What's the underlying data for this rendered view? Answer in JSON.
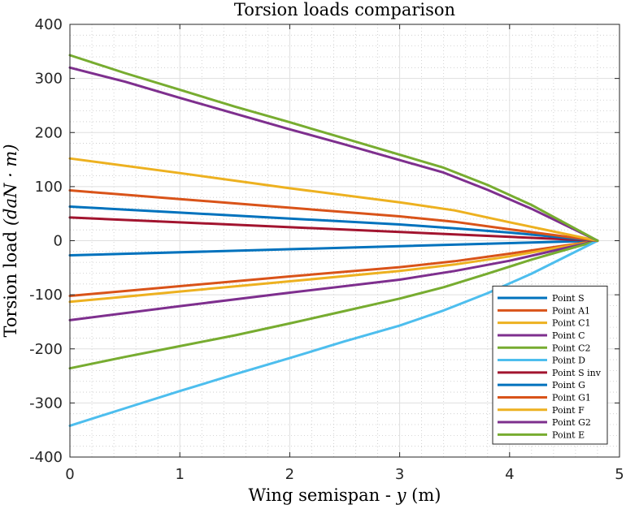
{
  "chart_data": {
    "type": "line",
    "title": "Torsion loads comparison",
    "xlabel_text": "Wing semispan - ",
    "xlabel_var": "y",
    "xlabel_unit": "(m)",
    "ylabel_text": "Torsion load ",
    "ylabel_unit": "(daN · m)",
    "xlim": [
      0,
      5
    ],
    "ylim": [
      -400,
      400
    ],
    "xticks": [
      0,
      1,
      2,
      3,
      4,
      5
    ],
    "yticks": [
      -400,
      -300,
      -200,
      -100,
      0,
      100,
      200,
      300,
      400
    ],
    "grid": true,
    "minor_grid": true,
    "legend_position": "bottom-right",
    "series": [
      {
        "name": "Point S",
        "color": "#0072BD",
        "x": [
          0,
          4.8
        ],
        "y": [
          -27,
          0
        ]
      },
      {
        "name": "Point A1",
        "color": "#D95319",
        "x": [
          0,
          1,
          2,
          3,
          3.5,
          4,
          4.8
        ],
        "y": [
          -102,
          -84,
          -66,
          -49,
          -38,
          -24,
          0
        ]
      },
      {
        "name": "Point C1",
        "color": "#EDB120",
        "x": [
          0,
          1,
          2,
          3,
          3.5,
          4,
          4.8
        ],
        "y": [
          -113,
          -94,
          -75,
          -56,
          -44,
          -29,
          0
        ]
      },
      {
        "name": "Point C",
        "color": "#7E2F8E",
        "x": [
          0,
          1,
          2,
          3,
          3.5,
          4,
          4.8
        ],
        "y": [
          -147,
          -121,
          -96,
          -72,
          -56,
          -37,
          0
        ]
      },
      {
        "name": "Point C2",
        "color": "#77AC30",
        "x": [
          0,
          0.5,
          1,
          1.5,
          2,
          2.5,
          3,
          3.4,
          3.8,
          4.2,
          4.8
        ],
        "y": [
          -236,
          -215,
          -195,
          -175,
          -153,
          -130,
          -107,
          -86,
          -61,
          -35,
          0
        ]
      },
      {
        "name": "Point D",
        "color": "#4DBEEE",
        "x": [
          0,
          0.5,
          1,
          1.5,
          2,
          2.5,
          3,
          3.4,
          3.8,
          4.2,
          4.8
        ],
        "y": [
          -342,
          -310,
          -278,
          -247,
          -217,
          -186,
          -157,
          -129,
          -97,
          -61,
          0
        ]
      },
      {
        "name": "Point S inv",
        "color": "#A2142F",
        "x": [
          0,
          4.8
        ],
        "y": [
          43,
          0
        ]
      },
      {
        "name": "Point G",
        "color": "#0072BD",
        "x": [
          0,
          1,
          2,
          3,
          3.5,
          4,
          4.8
        ],
        "y": [
          63,
          52,
          41,
          30,
          23,
          15,
          0
        ]
      },
      {
        "name": "Point G1",
        "color": "#D95319",
        "x": [
          0,
          1,
          2,
          3,
          3.5,
          4,
          4.8
        ],
        "y": [
          93,
          77,
          61,
          45,
          35,
          21,
          0
        ]
      },
      {
        "name": "Point F",
        "color": "#EDB120",
        "x": [
          0,
          1,
          2,
          3,
          3.5,
          4,
          4.8
        ],
        "y": [
          152,
          125,
          97,
          71,
          56,
          34,
          0
        ]
      },
      {
        "name": "Point G2",
        "color": "#7E2F8E",
        "x": [
          0,
          0.5,
          1,
          1.5,
          2,
          2.5,
          3,
          3.4,
          3.8,
          4.2,
          4.8
        ],
        "y": [
          320,
          294,
          264,
          235,
          206,
          178,
          149,
          126,
          94,
          59,
          0
        ]
      },
      {
        "name": "Point E",
        "color": "#77AC30",
        "x": [
          0,
          0.5,
          1,
          1.5,
          2,
          2.5,
          3,
          3.4,
          3.8,
          4.2,
          4.8
        ],
        "y": [
          343,
          310,
          279,
          248,
          219,
          189,
          159,
          135,
          103,
          66,
          0
        ]
      }
    ]
  }
}
